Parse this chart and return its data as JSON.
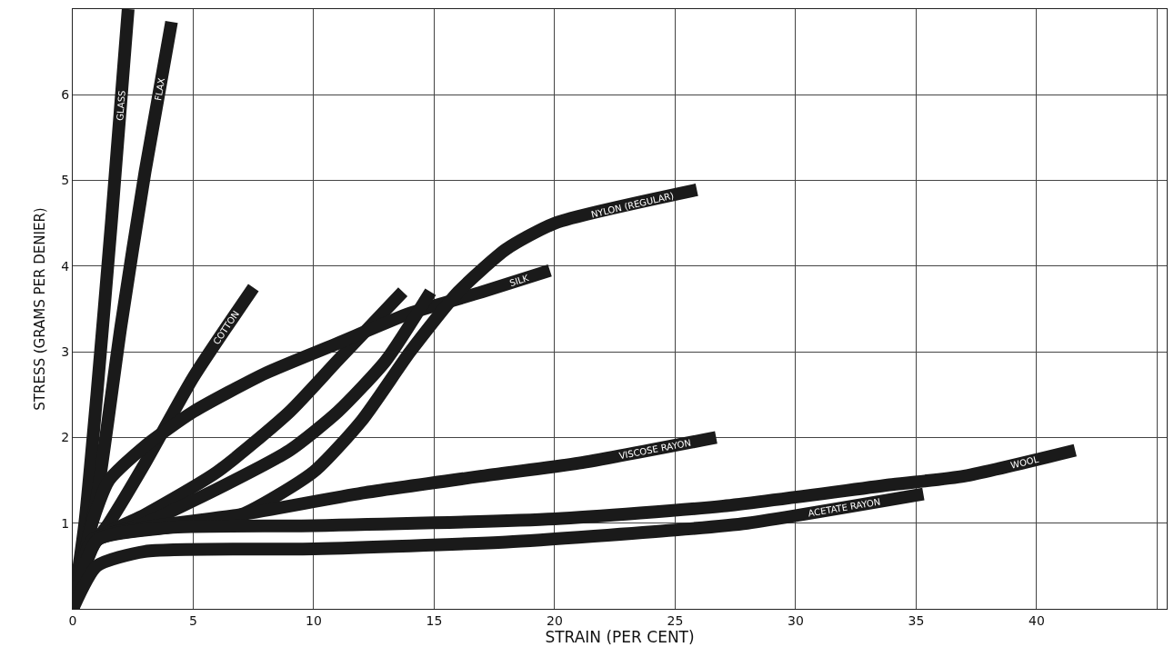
{
  "chart_data": {
    "type": "line",
    "xlabel": "STRAIN (PER CENT)",
    "ylabel": "STRESS (GRAMS PER DENIER)",
    "xlim": [
      0,
      45.4
    ],
    "ylim": [
      0,
      7
    ],
    "xticks": [
      0,
      5,
      10,
      15,
      20,
      25,
      30,
      35,
      40,
      {
        "value": 45,
        "label": null
      }
    ],
    "yticks": [
      {
        "value": 0,
        "label": null
      },
      1,
      2,
      3,
      4,
      5,
      6,
      {
        "value": 7,
        "label": null
      }
    ],
    "grid": true,
    "marker": "none",
    "line_style": "solid",
    "series": [
      {
        "name": "GLASS",
        "color": "#1a1a1a",
        "x": [
          0,
          0.5,
          1,
          1.6,
          2.3
        ],
        "values": [
          0,
          1,
          2.5,
          4.5,
          7.0
        ]
      },
      {
        "name": "FLAX",
        "color": "#1a1a1a",
        "x": [
          0,
          1,
          2,
          3,
          4.1
        ],
        "values": [
          0,
          1.3,
          3.3,
          5.1,
          6.85
        ]
      },
      {
        "name": "COTTON",
        "color": "#1a1a1a",
        "x": [
          0,
          0.5,
          1.5,
          3,
          5,
          7.5
        ],
        "values": [
          0,
          0.6,
          1.0,
          1.7,
          2.7,
          3.75
        ]
      },
      {
        "color": "#1a1a1a",
        "x": [
          0,
          1,
          3,
          6,
          9,
          11,
          13.7
        ],
        "values": [
          0,
          0.8,
          1.1,
          1.6,
          2.3,
          2.9,
          3.7
        ]
      },
      {
        "name": "SILK",
        "color": "#1a1a1a",
        "x": [
          0,
          0.8,
          1.5,
          3,
          5,
          8,
          11,
          14,
          17,
          19.8
        ],
        "values": [
          0,
          1.0,
          1.5,
          1.9,
          2.3,
          2.75,
          3.1,
          3.45,
          3.7,
          3.95
        ]
      },
      {
        "color": "#1a1a1a",
        "x": [
          0,
          1,
          3,
          6,
          9,
          11,
          13,
          14.85
        ],
        "values": [
          0,
          0.8,
          1.0,
          1.4,
          1.85,
          2.3,
          2.9,
          3.7
        ]
      },
      {
        "name": "NYLON (REGULAR)",
        "color": "#1a1a1a",
        "x": [
          0,
          1,
          4,
          7,
          10,
          12,
          14,
          16,
          18,
          20,
          25.9
        ],
        "values": [
          0,
          0.8,
          0.95,
          1.1,
          1.6,
          2.2,
          3.0,
          3.7,
          4.2,
          4.5,
          4.89
        ]
      },
      {
        "name": "VISCOSE RAYON",
        "color": "#1a1a1a",
        "x": [
          0,
          0.8,
          3,
          7,
          12,
          17,
          21,
          26.7
        ],
        "values": [
          0,
          0.8,
          0.95,
          1.1,
          1.35,
          1.55,
          1.7,
          2.0
        ]
      },
      {
        "name": "WOOL",
        "color": "#1a1a1a",
        "x": [
          0,
          1,
          4,
          10,
          20,
          27,
          34,
          37,
          41.6
        ],
        "values": [
          0,
          0.8,
          0.95,
          0.97,
          1.05,
          1.2,
          1.45,
          1.55,
          1.85
        ]
      },
      {
        "name": "ACETATE RAYON",
        "color": "#1a1a1a",
        "x": [
          0,
          1,
          3,
          10,
          18,
          25,
          28,
          35.3
        ],
        "values": [
          0,
          0.5,
          0.67,
          0.7,
          0.78,
          0.92,
          1.0,
          1.34
        ]
      }
    ]
  }
}
